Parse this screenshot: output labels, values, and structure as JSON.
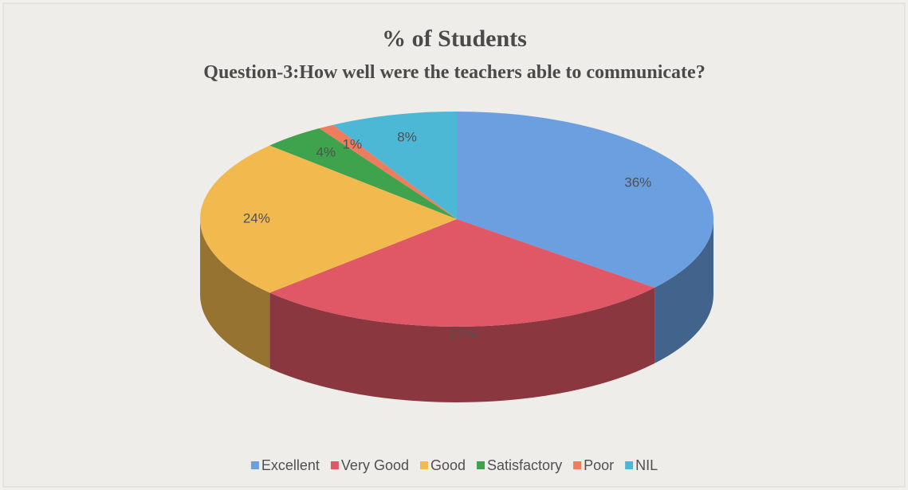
{
  "chart_data": {
    "type": "pie3d",
    "title": "% of Students",
    "subtitle": "Question-3:How well were the teachers able to communicate?",
    "categories": [
      "Excellent",
      "Very Good",
      "Good",
      "Satisfactory",
      "Poor",
      "NIL"
    ],
    "values": [
      36,
      27,
      24,
      4,
      1,
      8
    ],
    "value_labels": [
      "36%",
      "27%",
      "24%",
      "4%",
      "1%",
      "8%"
    ],
    "colors": [
      "#6b9fe0",
      "#e05866",
      "#f2b94e",
      "#3fa34e",
      "#ef7c5c",
      "#4db7d6"
    ],
    "legend": "bottom"
  }
}
